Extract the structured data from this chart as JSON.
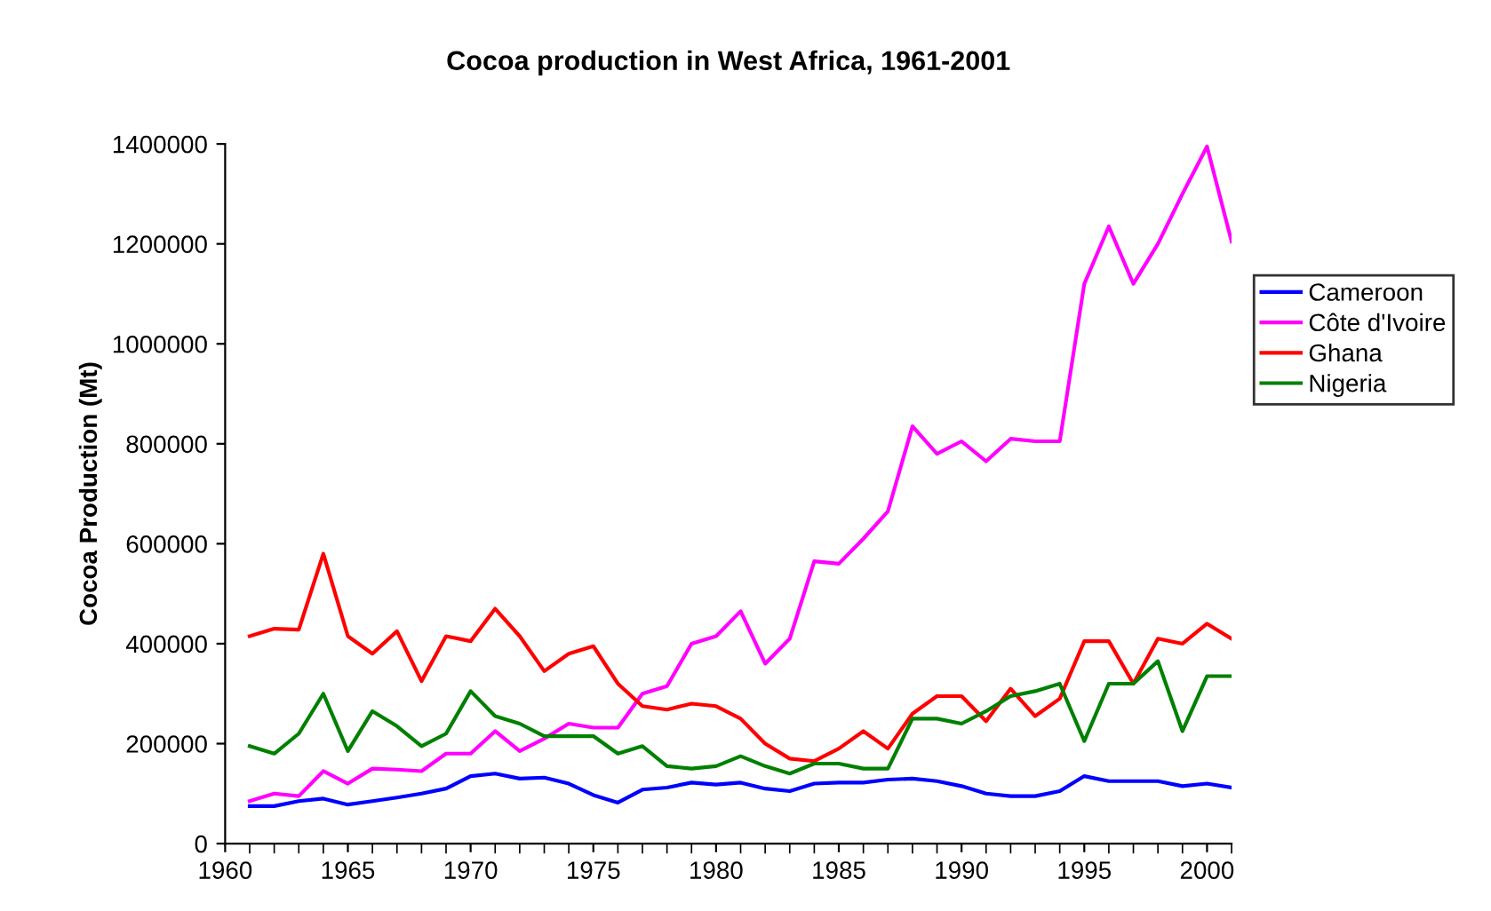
{
  "chart_data": {
    "type": "line",
    "title": "Cocoa production in West Africa, 1961-2001",
    "ylabel": "Cocoa Production (Mt)",
    "x": [
      1961,
      1962,
      1963,
      1964,
      1965,
      1966,
      1967,
      1968,
      1969,
      1970,
      1971,
      1972,
      1973,
      1974,
      1975,
      1976,
      1977,
      1978,
      1979,
      1980,
      1981,
      1982,
      1983,
      1984,
      1985,
      1986,
      1987,
      1988,
      1989,
      1990,
      1991,
      1992,
      1993,
      1994,
      1995,
      1996,
      1997,
      1998,
      1999,
      2000,
      2001
    ],
    "series": [
      {
        "name": "Cameroon",
        "color": "#0000ff",
        "values": [
          75000,
          75000,
          85000,
          90000,
          78000,
          85000,
          92000,
          100000,
          110000,
          135000,
          140000,
          130000,
          132000,
          120000,
          97000,
          82000,
          108000,
          112000,
          122000,
          118000,
          122000,
          110000,
          105000,
          120000,
          122000,
          122000,
          128000,
          130000,
          125000,
          115000,
          100000,
          95000,
          95000,
          105000,
          135000,
          125000,
          125000,
          125000,
          115000,
          120000,
          112000
        ]
      },
      {
        "name": "Côte d'Ivoire",
        "color": "#ff00ff",
        "values": [
          85000,
          100000,
          95000,
          145000,
          120000,
          150000,
          148000,
          145000,
          180000,
          180000,
          225000,
          185000,
          210000,
          240000,
          232000,
          232000,
          300000,
          315000,
          400000,
          415000,
          465000,
          360000,
          410000,
          565000,
          560000,
          610000,
          665000,
          835000,
          780000,
          805000,
          765000,
          810000,
          805000,
          805000,
          1120000,
          1235000,
          1120000,
          1200000,
          1300000,
          1395000,
          1205000
        ]
      },
      {
        "name": "Ghana",
        "color": "#ff0000",
        "values": [
          415000,
          430000,
          428000,
          580000,
          415000,
          380000,
          425000,
          325000,
          415000,
          405000,
          470000,
          415000,
          345000,
          380000,
          395000,
          320000,
          275000,
          268000,
          280000,
          275000,
          250000,
          200000,
          170000,
          165000,
          190000,
          225000,
          190000,
          260000,
          295000,
          295000,
          245000,
          310000,
          255000,
          290000,
          405000,
          405000,
          320000,
          410000,
          400000,
          440000,
          410000
        ]
      },
      {
        "name": "Nigeria",
        "color": "#008000",
        "values": [
          195000,
          180000,
          220000,
          300000,
          185000,
          265000,
          235000,
          195000,
          220000,
          305000,
          255000,
          240000,
          215000,
          215000,
          215000,
          180000,
          195000,
          155000,
          150000,
          155000,
          175000,
          155000,
          140000,
          160000,
          160000,
          150000,
          150000,
          250000,
          250000,
          240000,
          265000,
          295000,
          305000,
          320000,
          205000,
          320000,
          320000,
          365000,
          225000,
          335000,
          335000
        ]
      }
    ],
    "xlim": [
      1960,
      2001
    ],
    "xticks": [
      1960,
      1965,
      1970,
      1975,
      1980,
      1985,
      1990,
      1995,
      2000
    ],
    "ylim": [
      0,
      1400000
    ],
    "yticks": [
      0,
      200000,
      400000,
      600000,
      800000,
      1000000,
      1200000,
      1400000
    ],
    "grid": false,
    "legend": "right",
    "marker": "none",
    "line_style": "solid"
  }
}
